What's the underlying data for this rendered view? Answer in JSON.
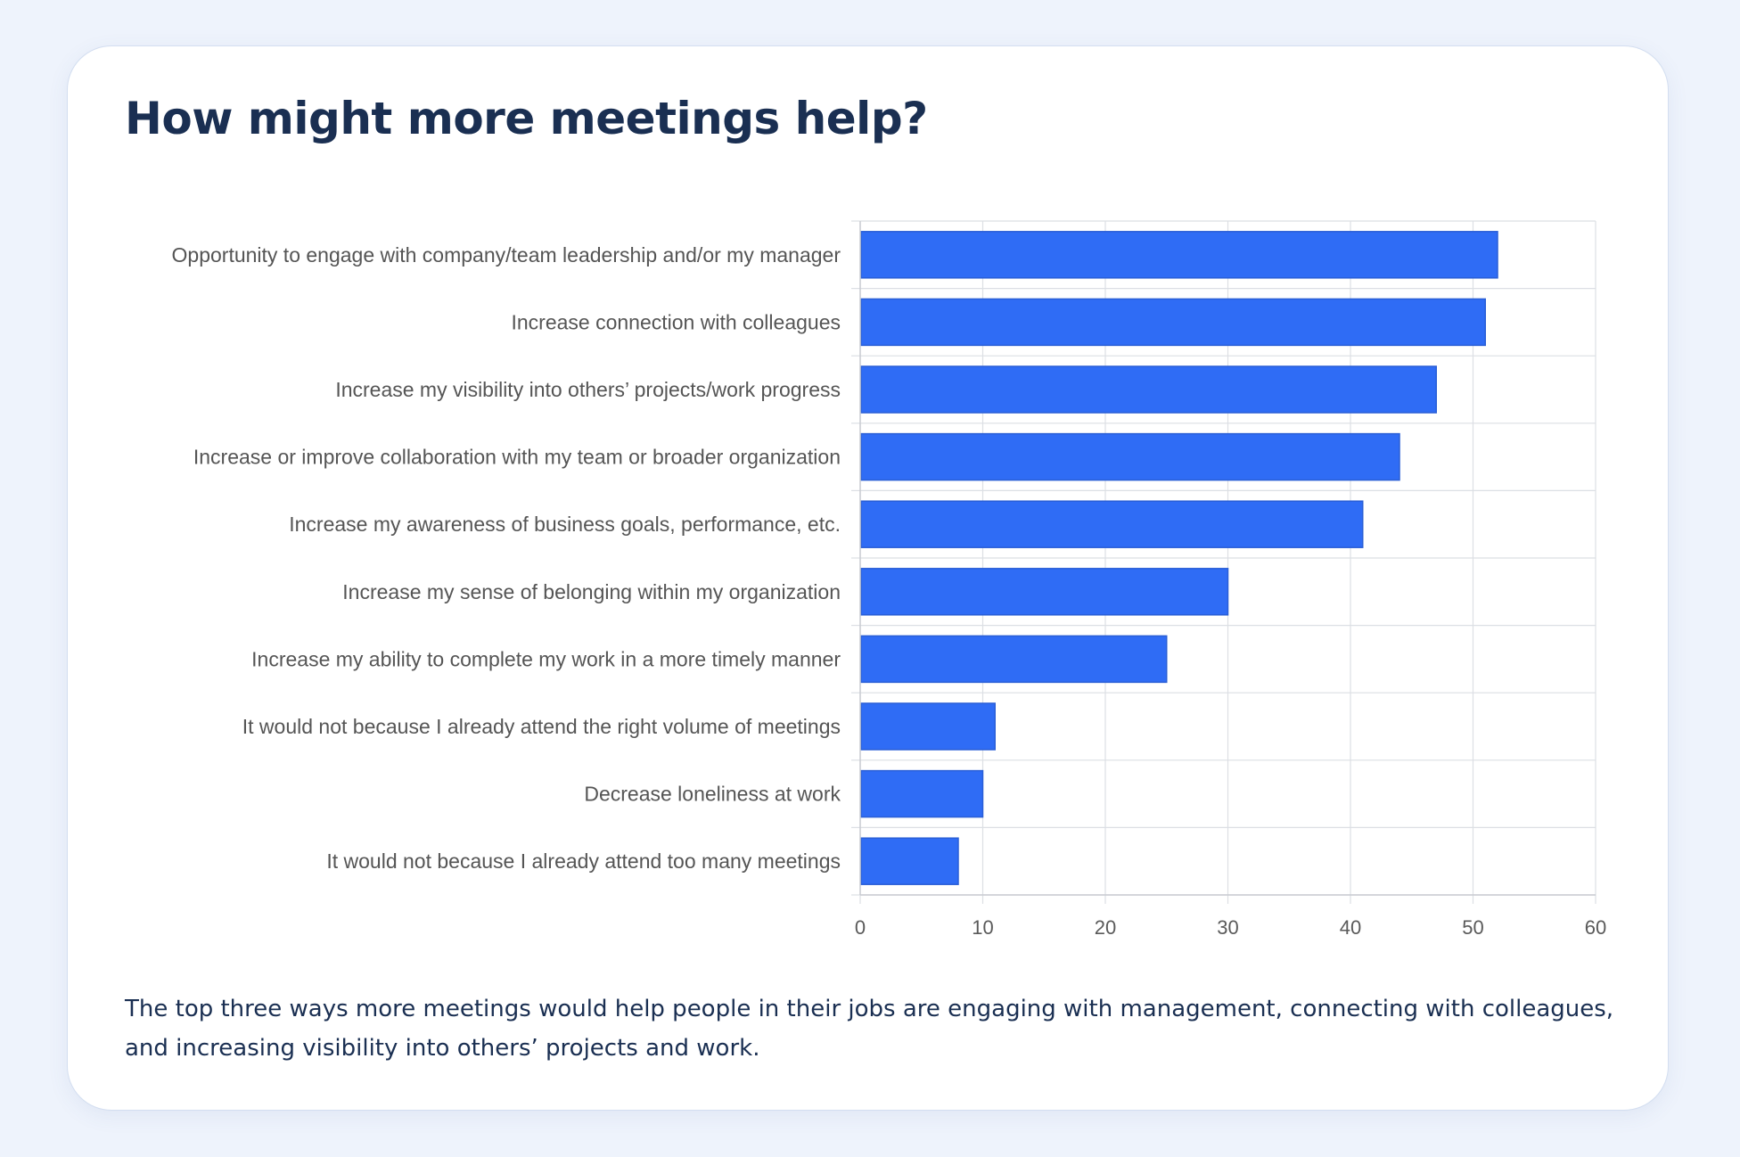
{
  "title": "How might more meetings help?",
  "caption": "The top three ways more meetings would help people in their jobs are engaging with management, connecting with colleagues, and increasing visibility into others’ projects and work.",
  "colors": {
    "bar_fill": "#2f6cf5",
    "bar_stroke": "#2a5fd6",
    "grid": "#dcdfe4",
    "label_text": "#555555",
    "title_text": "#1a2f52"
  },
  "chart_data": {
    "type": "bar",
    "orientation": "horizontal",
    "categories": [
      "Opportunity to engage with company/team leadership and/or my manager",
      "Increase connection with colleagues",
      "Increase my visibility into others’ projects/work progress",
      "Increase or improve collaboration with my team or broader organization",
      "Increase my awareness of business goals, performance, etc.",
      "Increase my sense of belonging within my organization",
      "Increase my ability to complete my work in a more timely manner",
      "It would not because I already attend the right volume of meetings",
      "Decrease loneliness at work",
      "It would not because I already attend too many meetings"
    ],
    "values": [
      52,
      51,
      47,
      44,
      41,
      30,
      25,
      11,
      10,
      8
    ],
    "xlim": [
      0,
      60
    ],
    "xticks": [
      "0",
      "10",
      "20",
      "30",
      "40",
      "50",
      "60"
    ],
    "grid": true,
    "legend": false
  }
}
